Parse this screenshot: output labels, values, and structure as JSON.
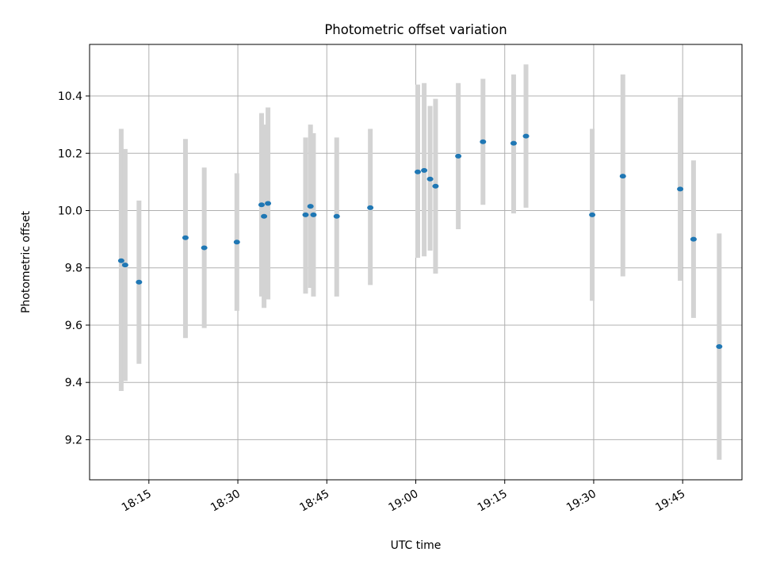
{
  "chart_data": {
    "type": "scatter",
    "title": "Photometric offset variation",
    "xlabel": "UTC time",
    "ylabel": "Photometric offset",
    "ylim": [
      9.06,
      10.58
    ],
    "xlim": [
      "18:05",
      "19:55"
    ],
    "yticks": [
      "9.2",
      "9.4",
      "9.6",
      "9.8",
      "10.0",
      "10.2",
      "10.4"
    ],
    "xticks": [
      "18:15",
      "18:30",
      "18:45",
      "19:00",
      "19:15",
      "19:30",
      "19:45"
    ],
    "grid": true,
    "colors": {
      "point": "#1f77b4",
      "errorbar": "#d3d3d3",
      "grid": "#b0b0b0"
    },
    "points": [
      {
        "t": "18:10:20",
        "y": 9.825,
        "lo": 9.37,
        "hi": 10.285
      },
      {
        "t": "18:11:00",
        "y": 9.81,
        "lo": 9.405,
        "hi": 10.215
      },
      {
        "t": "18:13:20",
        "y": 9.75,
        "lo": 9.465,
        "hi": 10.035
      },
      {
        "t": "18:21:10",
        "y": 9.905,
        "lo": 9.555,
        "hi": 10.25
      },
      {
        "t": "18:24:20",
        "y": 9.87,
        "lo": 9.59,
        "hi": 10.15
      },
      {
        "t": "18:29:50",
        "y": 9.89,
        "lo": 9.65,
        "hi": 10.13
      },
      {
        "t": "18:34:00",
        "y": 10.02,
        "lo": 9.7,
        "hi": 10.34
      },
      {
        "t": "18:34:25",
        "y": 9.98,
        "lo": 9.66,
        "hi": 10.3
      },
      {
        "t": "18:35:05",
        "y": 10.025,
        "lo": 9.69,
        "hi": 10.36
      },
      {
        "t": "18:41:25",
        "y": 9.985,
        "lo": 9.71,
        "hi": 10.255
      },
      {
        "t": "18:42:15",
        "y": 10.015,
        "lo": 9.73,
        "hi": 10.3
      },
      {
        "t": "18:42:45",
        "y": 9.985,
        "lo": 9.7,
        "hi": 10.27
      },
      {
        "t": "18:46:40",
        "y": 9.98,
        "lo": 9.7,
        "hi": 10.255
      },
      {
        "t": "18:52:20",
        "y": 10.01,
        "lo": 9.74,
        "hi": 10.285
      },
      {
        "t": "19:00:20",
        "y": 10.135,
        "lo": 9.835,
        "hi": 10.44
      },
      {
        "t": "19:01:25",
        "y": 10.14,
        "lo": 9.84,
        "hi": 10.445
      },
      {
        "t": "19:02:25",
        "y": 10.11,
        "lo": 9.86,
        "hi": 10.365
      },
      {
        "t": "19:03:20",
        "y": 10.085,
        "lo": 9.78,
        "hi": 10.39
      },
      {
        "t": "19:07:10",
        "y": 10.19,
        "lo": 9.935,
        "hi": 10.445
      },
      {
        "t": "19:11:20",
        "y": 10.24,
        "lo": 10.02,
        "hi": 10.46
      },
      {
        "t": "19:16:30",
        "y": 10.235,
        "lo": 9.99,
        "hi": 10.475
      },
      {
        "t": "19:18:35",
        "y": 10.26,
        "lo": 10.01,
        "hi": 10.51
      },
      {
        "t": "19:29:45",
        "y": 9.985,
        "lo": 9.685,
        "hi": 10.285
      },
      {
        "t": "19:34:55",
        "y": 10.12,
        "lo": 9.77,
        "hi": 10.475
      },
      {
        "t": "19:44:35",
        "y": 10.075,
        "lo": 9.755,
        "hi": 10.395
      },
      {
        "t": "19:46:50",
        "y": 9.9,
        "lo": 9.625,
        "hi": 10.175
      },
      {
        "t": "19:51:10",
        "y": 9.525,
        "lo": 9.13,
        "hi": 9.92
      }
    ]
  }
}
